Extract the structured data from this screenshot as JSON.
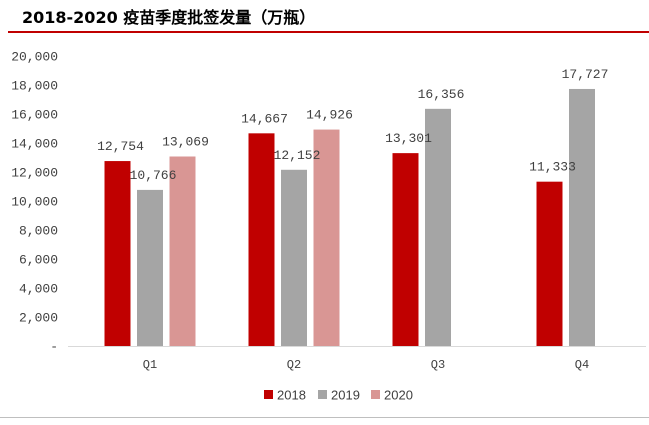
{
  "chart_data": {
    "type": "bar",
    "title": "2018-2020 疫苗季度批签发量（万瓶）",
    "categories": [
      "Q1",
      "Q2",
      "Q3",
      "Q4"
    ],
    "series": [
      {
        "name": "2018",
        "color": "#C00000",
        "values": [
          12754,
          14667,
          13301,
          11333
        ],
        "labels": [
          "12,754",
          "14,667",
          "13,301",
          "11,333"
        ]
      },
      {
        "name": "2019",
        "color": "#A5A5A5",
        "values": [
          10766,
          12152,
          16356,
          17727
        ],
        "labels": [
          "10,766",
          "12,152",
          "16,356",
          "17,727"
        ]
      },
      {
        "name": "2020",
        "color": "#D99694",
        "values": [
          13069,
          14926,
          null,
          null
        ],
        "labels": [
          "13,069",
          "14,926",
          null,
          null
        ]
      }
    ],
    "ylim": [
      0,
      20000
    ],
    "ytick_step": 2000,
    "ytick_labels": [
      "-",
      "2,000",
      "4,000",
      "6,000",
      "8,000",
      "10,000",
      "12,000",
      "14,000",
      "16,000",
      "18,000",
      "20,000"
    ],
    "grid": false,
    "legend": "bottom"
  },
  "colors": {
    "title_rule": "#C00000",
    "axis_line": "#D9D9D9",
    "footer_rule": "#BFBFBF",
    "text": "#404040"
  }
}
